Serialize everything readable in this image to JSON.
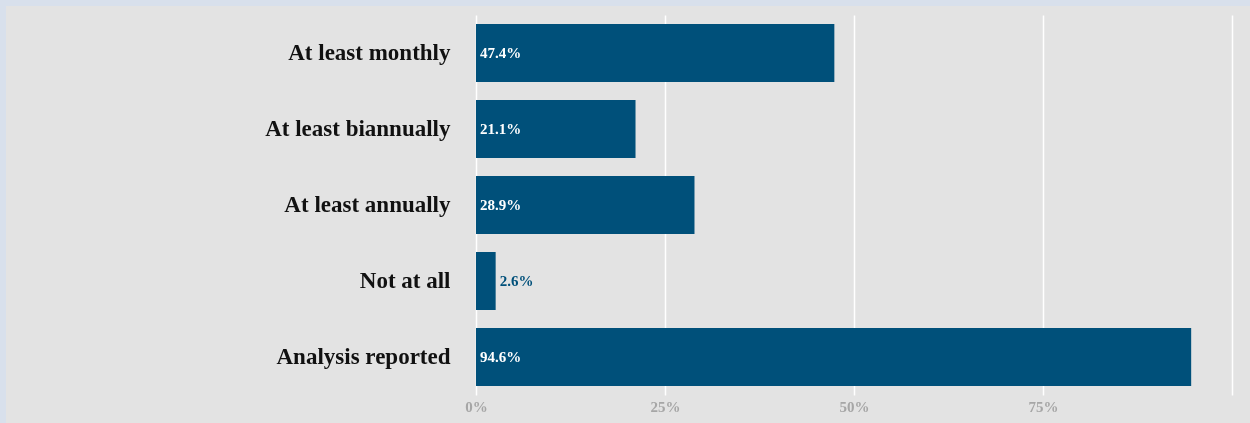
{
  "chart_data": {
    "type": "bar",
    "orientation": "horizontal",
    "categories": [
      "At least monthly",
      "At least biannually",
      "At least annually",
      "Not at all",
      "Analysis reported"
    ],
    "values": [
      47.4,
      21.1,
      28.9,
      2.6,
      94.6
    ],
    "value_labels": [
      "47.4%",
      "21.1%",
      "28.9%",
      "2.6%",
      "94.6%"
    ],
    "color": "#00507a",
    "xlim": [
      0,
      100
    ],
    "xticks": [
      {
        "value": 0,
        "label": "0%"
      },
      {
        "value": 25,
        "label": "25%"
      },
      {
        "value": 50,
        "label": "50%"
      },
      {
        "value": 75,
        "label": "75%"
      },
      {
        "value": 100,
        "label": null
      }
    ],
    "grid": "x"
  }
}
